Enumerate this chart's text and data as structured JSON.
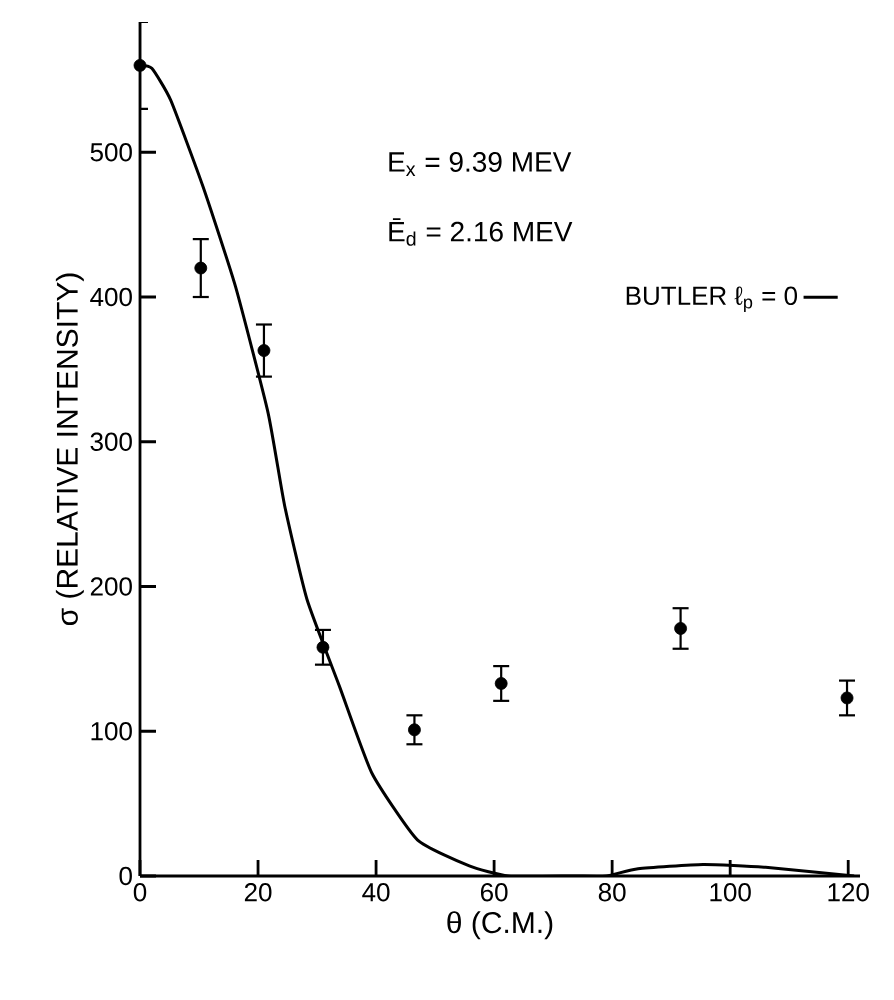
{
  "chart_data": {
    "type": "scatter",
    "xlabel": "θ (C.M.)",
    "ylabel": "σ (RELATIVE INTENSITY)",
    "xlim": [
      0,
      122
    ],
    "ylim": [
      0,
      590
    ],
    "xticks": [
      0,
      20,
      40,
      60,
      80,
      100,
      120
    ],
    "yticks": [
      0,
      100,
      200,
      300,
      400,
      500
    ],
    "grid": false,
    "legend": "top right",
    "annotations": [
      "E$_{x}$ = 9.39 MEV",
      "Ē$_{d}$ = 2.16 MEV"
    ],
    "series": [
      {
        "color": "#000000",
        "marker": "circle",
        "x": [
          0,
          10.3,
          21,
          31,
          46.5,
          61.2,
          91.6,
          119.8
        ],
        "values": [
          560,
          420,
          363,
          158,
          101,
          133,
          171,
          123
        ],
        "errors": [
          30,
          20,
          18,
          12,
          10,
          12,
          14,
          12
        ]
      },
      {
        "type": "line",
        "name": "BUTLER ℓ$_{p}$ = 0",
        "color": "#000000",
        "marker": "none",
        "line_style": "solid",
        "x": [
          0,
          2,
          5.2,
          10.7,
          16.2,
          21.7,
          24.5,
          28.3,
          33.8,
          39.3,
          47,
          55.8,
          62.4,
          73.4,
          79,
          84.4,
          95.4,
          106,
          121
        ],
        "values": [
          560,
          558,
          536,
          476,
          407,
          320,
          256,
          191,
          131,
          71,
          25,
          7,
          0,
          0,
          0,
          5,
          8,
          6,
          0
        ]
      }
    ]
  }
}
